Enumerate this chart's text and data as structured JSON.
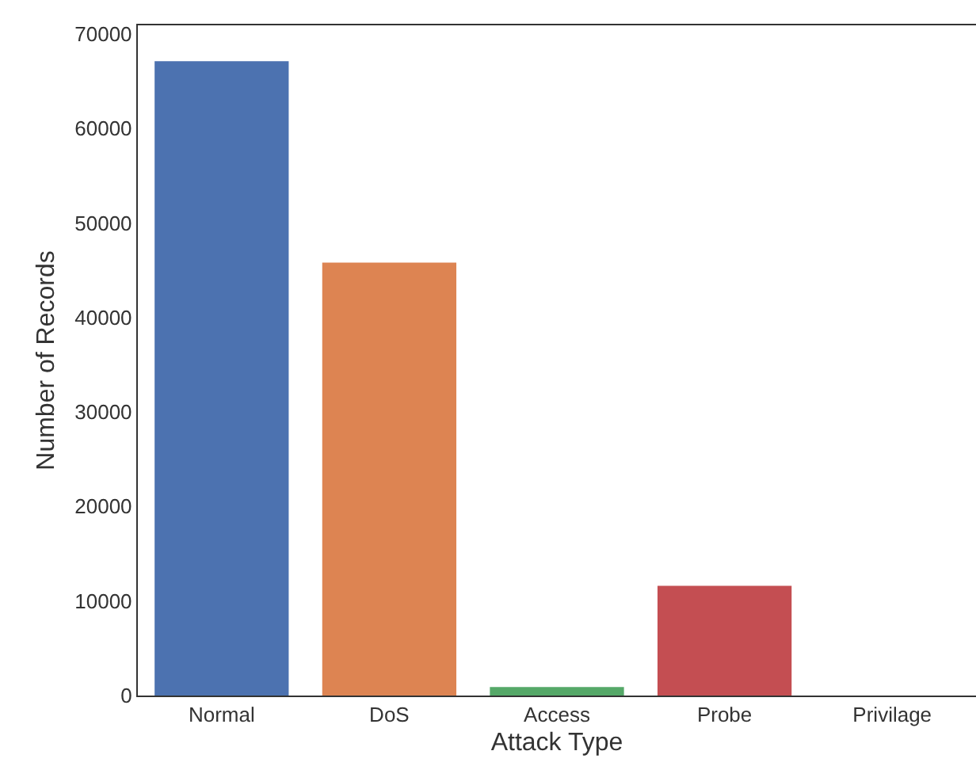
{
  "chart_data": {
    "type": "bar",
    "xlabel": "Attack Type",
    "ylabel": "Number of Records",
    "categories": [
      "Normal",
      "DoS",
      "Access",
      "Probe",
      "Privilage"
    ],
    "values": [
      67100,
      45800,
      900,
      11600,
      0
    ],
    "colors": [
      "#4c72b0",
      "#dd8452",
      "#55a868",
      "#c44e52",
      "#8172b3"
    ],
    "ylim": [
      0,
      70900
    ],
    "yticks": [
      0,
      10000,
      20000,
      30000,
      40000,
      50000,
      60000,
      70000
    ],
    "grid": false
  }
}
